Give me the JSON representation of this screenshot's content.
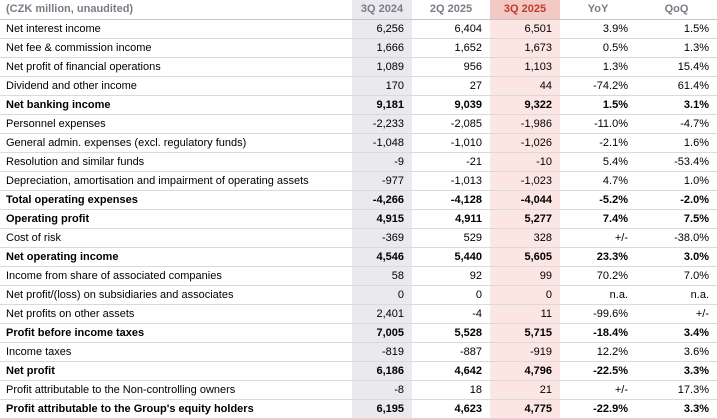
{
  "colors": {
    "header_text": "#7b7b85",
    "past_quarter_bg": "#e9e9ee",
    "current_quarter_bg": "#fbe6e3",
    "current_quarter_header_bg": "#f3c9c4",
    "current_quarter_text": "#c13a2c"
  },
  "table": {
    "header": {
      "label": "(CZK million, unaudited)",
      "columns": [
        "3Q 2024",
        "2Q 2025",
        "3Q 2025",
        "YoY",
        "QoQ"
      ]
    },
    "rows": [
      {
        "label": "Net interest income",
        "bold": false,
        "values": [
          "6,256",
          "6,404",
          "6,501",
          "3.9%",
          "1.5%"
        ]
      },
      {
        "label": "Net fee & commission income",
        "bold": false,
        "values": [
          "1,666",
          "1,652",
          "1,673",
          "0.5%",
          "1.3%"
        ]
      },
      {
        "label": "Net profit of financial operations",
        "bold": false,
        "values": [
          "1,089",
          "956",
          "1,103",
          "1.3%",
          "15.4%"
        ]
      },
      {
        "label": "Dividend and other income",
        "bold": false,
        "values": [
          "170",
          "27",
          "44",
          "-74.2%",
          "61.4%"
        ]
      },
      {
        "label": "Net banking income",
        "bold": true,
        "values": [
          "9,181",
          "9,039",
          "9,322",
          "1.5%",
          "3.1%"
        ]
      },
      {
        "label": "Personnel expenses",
        "bold": false,
        "values": [
          "-2,233",
          "-2,085",
          "-1,986",
          "-11.0%",
          "-4.7%"
        ]
      },
      {
        "label": "General admin. expenses (excl. regulatory funds)",
        "bold": false,
        "values": [
          "-1,048",
          "-1,010",
          "-1,026",
          "-2.1%",
          "1.6%"
        ]
      },
      {
        "label": "Resolution and similar funds",
        "bold": false,
        "values": [
          "-9",
          "-21",
          "-10",
          "5.4%",
          "-53.4%"
        ]
      },
      {
        "label": "Depreciation, amortisation and impairment of operating assets",
        "bold": false,
        "values": [
          "-977",
          "-1,013",
          "-1,023",
          "4.7%",
          "1.0%"
        ]
      },
      {
        "label": "Total operating expenses",
        "bold": true,
        "values": [
          "-4,266",
          "-4,128",
          "-4,044",
          "-5.2%",
          "-2.0%"
        ]
      },
      {
        "label": "Operating profit",
        "bold": true,
        "values": [
          "4,915",
          "4,911",
          "5,277",
          "7.4%",
          "7.5%"
        ]
      },
      {
        "label": "Cost of risk",
        "bold": false,
        "values": [
          "-369",
          "529",
          "328",
          "+/-",
          "-38.0%"
        ]
      },
      {
        "label": "Net operating income",
        "bold": true,
        "values": [
          "4,546",
          "5,440",
          "5,605",
          "23.3%",
          "3.0%"
        ]
      },
      {
        "label": "Income from share of associated companies",
        "bold": false,
        "values": [
          "58",
          "92",
          "99",
          "70.2%",
          "7.0%"
        ]
      },
      {
        "label": "Net profit/(loss) on subsidiaries and associates",
        "bold": false,
        "values": [
          "0",
          "0",
          "0",
          "n.a.",
          "n.a."
        ]
      },
      {
        "label": "Net profits on other assets",
        "bold": false,
        "values": [
          "2,401",
          "-4",
          "11",
          "-99.6%",
          "+/-"
        ]
      },
      {
        "label": "Profit before income taxes",
        "bold": true,
        "values": [
          "7,005",
          "5,528",
          "5,715",
          "-18.4%",
          "3.4%"
        ]
      },
      {
        "label": "Income taxes",
        "bold": false,
        "values": [
          "-819",
          "-887",
          "-919",
          "12.2%",
          "3.6%"
        ]
      },
      {
        "label": "Net profit",
        "bold": true,
        "values": [
          "6,186",
          "4,642",
          "4,796",
          "-22.5%",
          "3.3%"
        ]
      },
      {
        "label": "Profit attributable to the Non-controlling owners",
        "bold": false,
        "values": [
          "-8",
          "18",
          "21",
          "+/-",
          "17.3%"
        ]
      },
      {
        "label": "Profit attributable to the Group's equity holders",
        "bold": true,
        "values": [
          "6,195",
          "4,623",
          "4,775",
          "-22.9%",
          "3.3%"
        ]
      }
    ]
  }
}
